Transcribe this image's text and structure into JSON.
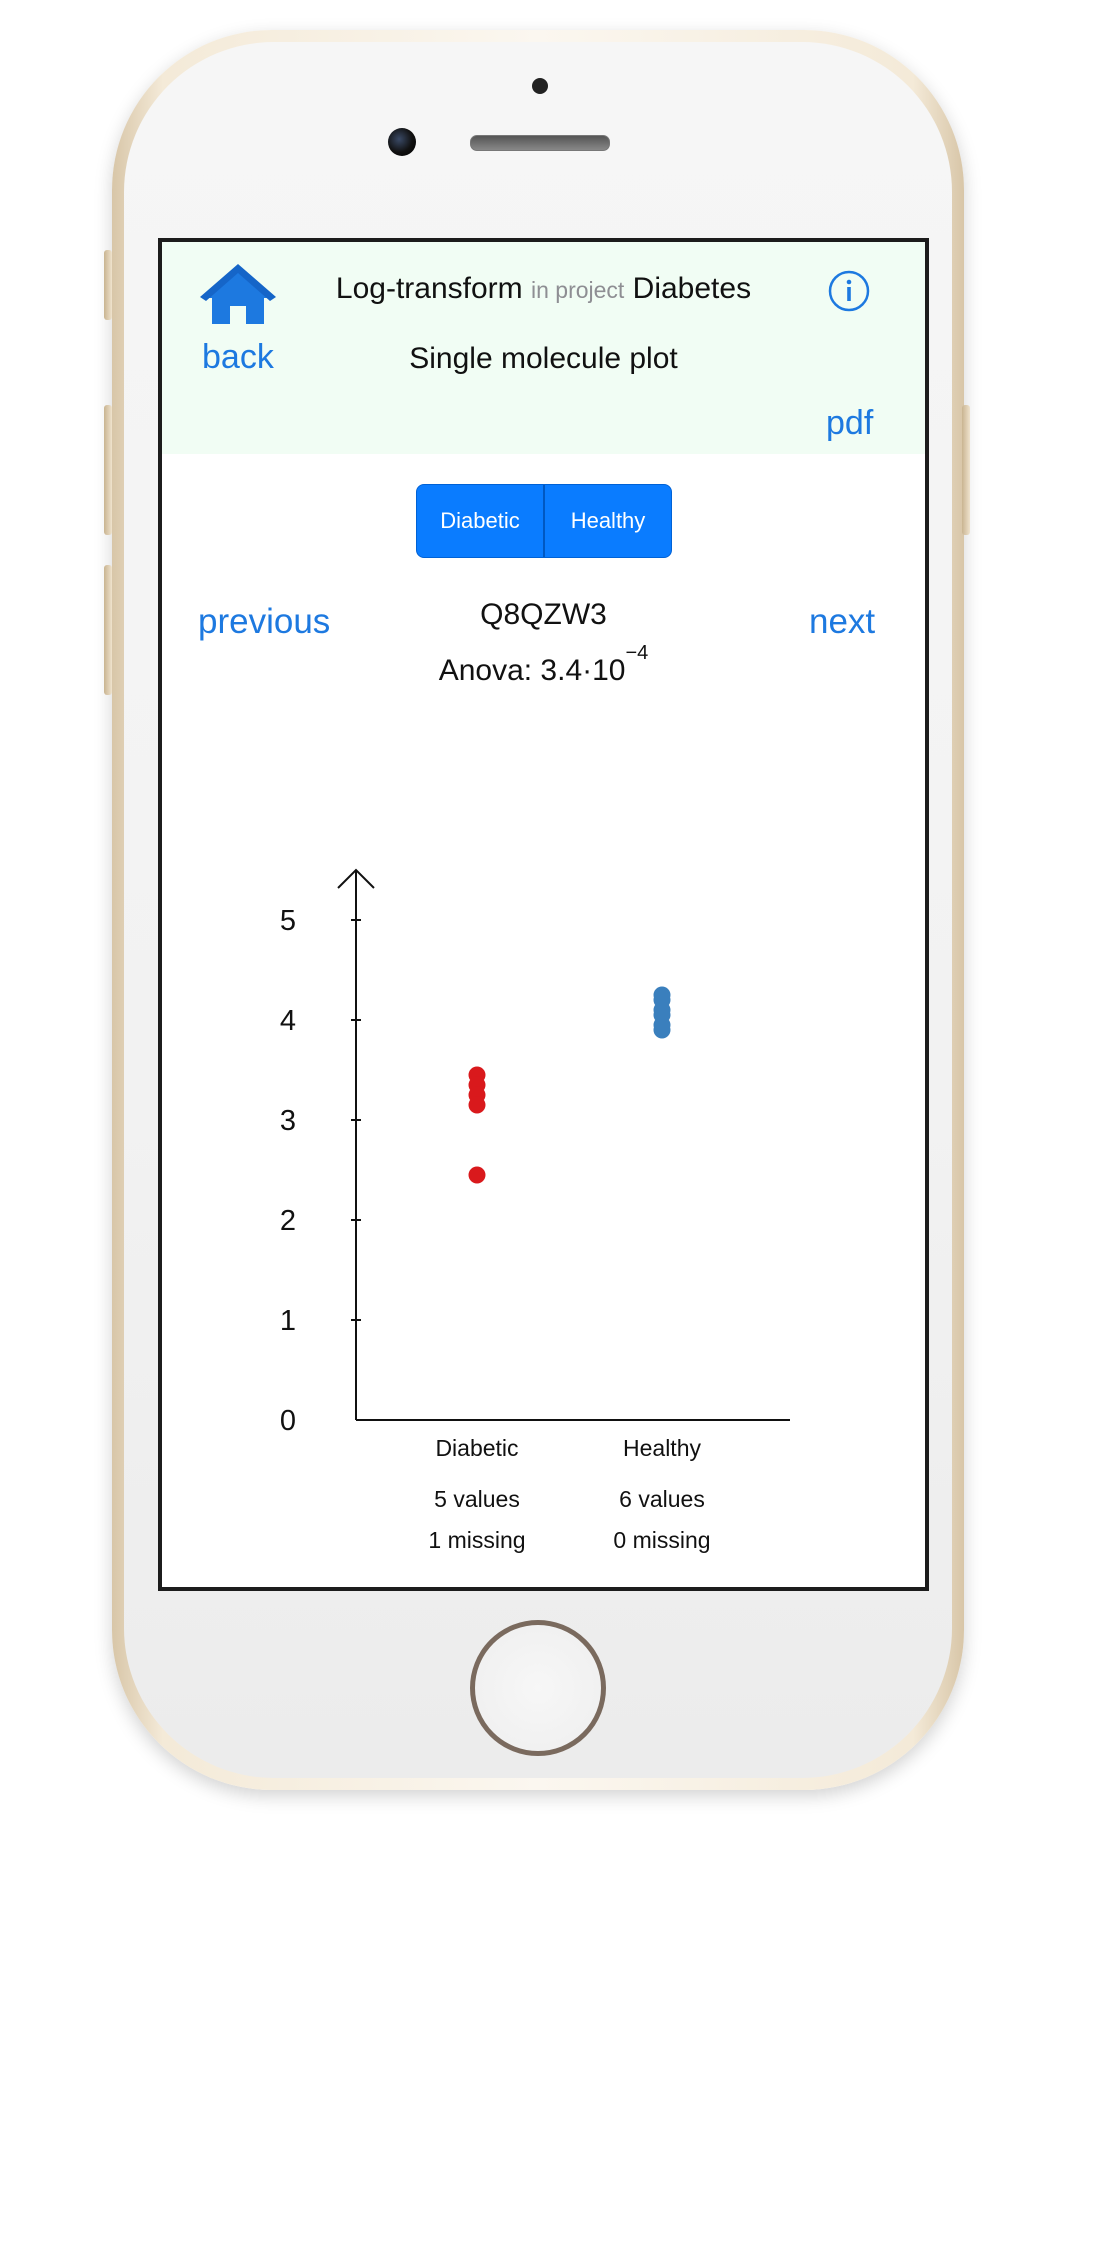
{
  "header": {
    "title": "Log-transform",
    "in_project": "in project",
    "project": "Diabetes",
    "back": "back",
    "subtitle": "Single molecule plot",
    "pdf": "pdf"
  },
  "segments": [
    "Diabetic",
    "Healthy"
  ],
  "navigation": {
    "previous": "previous",
    "next": "next"
  },
  "molecule": {
    "id": "Q8QZW3",
    "anova_prefix": "Anova: 3.4·10",
    "anova_exponent": "−4"
  },
  "colors": {
    "accent": "#1d79e0",
    "segment_bg": "#0a7cff",
    "nav_bg": "#f1fdf4",
    "diabetic": "#d9191c",
    "healthy": "#3a7fbd"
  },
  "chart_data": {
    "type": "scatter",
    "ylim": [
      0,
      5
    ],
    "yticks": [
      0,
      1,
      2,
      3,
      4,
      5
    ],
    "categories": [
      "Diabetic",
      "Healthy"
    ],
    "groups": [
      {
        "name": "Diabetic",
        "color": "#d9191c",
        "values": [
          3.45,
          3.35,
          3.25,
          3.15,
          2.45
        ],
        "count_label": "5 values",
        "missing_label": "1 missing"
      },
      {
        "name": "Healthy",
        "color": "#3a7fbd",
        "values": [
          4.25,
          4.2,
          4.1,
          4.05,
          3.95,
          3.9
        ],
        "count_label": "6 values",
        "missing_label": "0 missing"
      }
    ]
  }
}
